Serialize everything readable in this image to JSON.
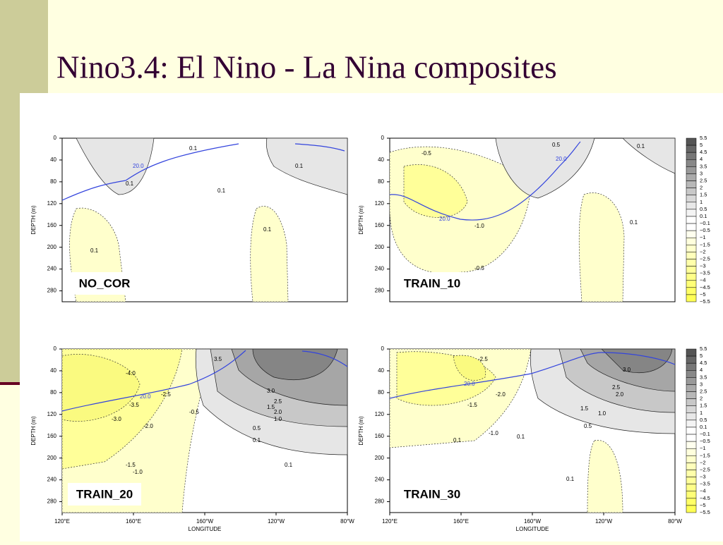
{
  "title": "Nino3.4: El Nino - La Nina composites",
  "panels": [
    {
      "label": "NO_COR",
      "contour_labels": [
        "20.0",
        "0.1",
        "0.1",
        "0.1",
        "0.1",
        "0.1",
        "0.1"
      ]
    },
    {
      "label": "TRAIN_10",
      "contour_labels": [
        "-0.5",
        "20.0",
        "-1.0",
        "0.5",
        "-0.5",
        "20.0",
        "0.1",
        "0.1"
      ]
    },
    {
      "label": "TRAIN_20",
      "contour_labels": [
        "-4.0",
        "-3.5",
        "20.0",
        "-3.0",
        "-2.5",
        "-2.0",
        "-1.5",
        "-1.0",
        "-0.5",
        "3.5",
        "3.0",
        "2.5",
        "2.0",
        "1.5",
        "1.0",
        "0.5",
        "0.1",
        "0.1"
      ]
    },
    {
      "label": "TRAIN_30",
      "contour_labels": [
        "-2.5",
        "20.0",
        "-2.0",
        "-1.5",
        "-1.0",
        "3.0",
        "2.5",
        "2.0",
        "1.5",
        "1.0",
        "0.5",
        "0.1",
        "0.1",
        "0.1"
      ]
    }
  ],
  "y_axis": {
    "label": "DEPTH (m)",
    "ticks": [
      "0",
      "40",
      "80",
      "120",
      "160",
      "200",
      "240",
      "280"
    ]
  },
  "x_axis": {
    "label": "LONGITUDE",
    "ticks": [
      "120°E",
      "160°E",
      "160°W",
      "120°W",
      "80°W"
    ]
  },
  "colorbar": {
    "labels": [
      "5.5",
      "5",
      "4.5",
      "4",
      "3.5",
      "3",
      "2.5",
      "2",
      "1.5",
      "1",
      "0.5",
      "0.1",
      "−0.1",
      "−0.5",
      "−1",
      "−1.5",
      "−2",
      "−2.5",
      "−3",
      "−3.5",
      "−4",
      "−4.5",
      "−5",
      "−5.5"
    ]
  }
}
